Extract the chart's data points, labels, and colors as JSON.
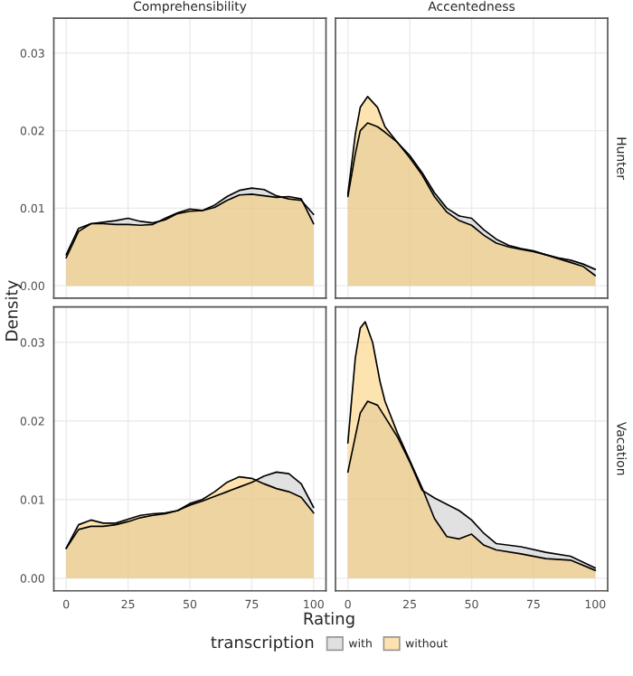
{
  "chart_data": [
    {
      "type": "area",
      "title": "Comprehensibility",
      "ylabel": "Density",
      "legend": "bottom",
      "legend_title": "transcription",
      "xlim": [
        -5,
        105
      ],
      "ylim": [
        -0.0016,
        0.0345
      ],
      "xticks": [
        0,
        25,
        50,
        75,
        100
      ],
      "yticks": [
        {
          "value": 0,
          "label": "0.00"
        },
        {
          "value": 0.01,
          "label": "0.01"
        },
        {
          "value": 0.02,
          "label": "0.02"
        },
        {
          "value": 0.03,
          "label": "0.03"
        }
      ],
      "tick_labels": "y",
      "grid": true,
      "series": [
        {
          "name": "with",
          "color": "#c3c3c3",
          "x": [
            0,
            5,
            10,
            15,
            20,
            25,
            30,
            35,
            40,
            45,
            50,
            55,
            60,
            65,
            70,
            75,
            80,
            85,
            90,
            95,
            100
          ],
          "values": [
            0.0036,
            0.007,
            0.008,
            0.0082,
            0.0084,
            0.0087,
            0.0083,
            0.0081,
            0.0085,
            0.0093,
            0.0096,
            0.0097,
            0.0104,
            0.0115,
            0.0123,
            0.0126,
            0.0124,
            0.0116,
            0.0112,
            0.011,
            0.0092
          ]
        },
        {
          "name": "without",
          "color": "#fbc761",
          "x": [
            0,
            5,
            10,
            15,
            20,
            25,
            30,
            35,
            40,
            45,
            50,
            55,
            60,
            65,
            70,
            75,
            80,
            85,
            90,
            95,
            100
          ],
          "values": [
            0.004,
            0.0074,
            0.008,
            0.008,
            0.0079,
            0.0079,
            0.0078,
            0.0079,
            0.0087,
            0.0094,
            0.0099,
            0.0097,
            0.0101,
            0.011,
            0.0117,
            0.0118,
            0.0116,
            0.0114,
            0.0115,
            0.0112,
            0.008
          ]
        }
      ]
    },
    {
      "type": "area",
      "title": "Accentedness",
      "annotations": [
        "Hunter"
      ],
      "xlim": [
        -5,
        105
      ],
      "ylim": [
        -0.0016,
        0.0345
      ],
      "xticks": [
        0,
        25,
        50,
        75,
        100
      ],
      "yticks": [
        {
          "value": 0,
          "label": null
        },
        {
          "value": 0.01,
          "label": null
        },
        {
          "value": 0.02,
          "label": null
        },
        {
          "value": 0.03,
          "label": null
        }
      ],
      "tick_labels": false,
      "grid": true,
      "series": [
        {
          "color": "#c3c3c3",
          "x": [
            0,
            3,
            5,
            8,
            12,
            15,
            20,
            25,
            30,
            35,
            40,
            45,
            50,
            55,
            60,
            65,
            70,
            75,
            80,
            85,
            90,
            95,
            100
          ],
          "values": [
            0.0115,
            0.017,
            0.02,
            0.021,
            0.0205,
            0.0198,
            0.0185,
            0.0168,
            0.0146,
            0.012,
            0.01,
            0.009,
            0.0087,
            0.0072,
            0.006,
            0.0052,
            0.0048,
            0.0045,
            0.004,
            0.0036,
            0.0033,
            0.0028,
            0.0021
          ]
        },
        {
          "color": "#fbc761",
          "x": [
            0,
            3,
            5,
            8,
            12,
            15,
            20,
            25,
            30,
            35,
            40,
            45,
            50,
            55,
            60,
            65,
            70,
            75,
            80,
            85,
            90,
            95,
            100
          ],
          "values": [
            0.0118,
            0.0195,
            0.023,
            0.0244,
            0.023,
            0.0205,
            0.0185,
            0.0165,
            0.0143,
            0.0115,
            0.0095,
            0.0084,
            0.0078,
            0.0065,
            0.0055,
            0.005,
            0.0047,
            0.0044,
            0.004,
            0.0035,
            0.003,
            0.0025,
            0.0013
          ]
        }
      ]
    },
    {
      "type": "area",
      "xlabel": "Rating",
      "xlim": [
        -5,
        105
      ],
      "ylim": [
        -0.0016,
        0.0345
      ],
      "xticks": [
        0,
        25,
        50,
        75,
        100
      ],
      "yticks": [
        {
          "value": 0,
          "label": "0.00"
        },
        {
          "value": 0.01,
          "label": "0.01"
        },
        {
          "value": 0.02,
          "label": "0.02"
        },
        {
          "value": 0.03,
          "label": "0.03"
        }
      ],
      "grid": true,
      "series": [
        {
          "color": "#c3c3c3",
          "x": [
            0,
            5,
            10,
            15,
            20,
            25,
            30,
            35,
            40,
            45,
            50,
            55,
            60,
            65,
            70,
            75,
            80,
            85,
            90,
            95,
            100
          ],
          "values": [
            0.0038,
            0.0062,
            0.0066,
            0.0066,
            0.0068,
            0.0072,
            0.0077,
            0.008,
            0.0082,
            0.0086,
            0.0093,
            0.0098,
            0.0104,
            0.011,
            0.0116,
            0.0122,
            0.013,
            0.0135,
            0.0133,
            0.012,
            0.009
          ]
        },
        {
          "color": "#fbc761",
          "x": [
            0,
            5,
            10,
            15,
            20,
            25,
            30,
            35,
            40,
            45,
            50,
            55,
            60,
            65,
            70,
            75,
            80,
            85,
            90,
            95,
            100
          ],
          "values": [
            0.0038,
            0.0068,
            0.0074,
            0.007,
            0.007,
            0.0075,
            0.008,
            0.0082,
            0.0083,
            0.0086,
            0.0095,
            0.01,
            0.011,
            0.0122,
            0.0129,
            0.0127,
            0.012,
            0.0114,
            0.011,
            0.0103,
            0.0083
          ]
        }
      ]
    },
    {
      "type": "area",
      "annotations": [
        "Vacation"
      ],
      "xlim": [
        -5,
        105
      ],
      "ylim": [
        -0.0016,
        0.0345
      ],
      "xticks": [
        0,
        25,
        50,
        75,
        100
      ],
      "yticks": [
        {
          "value": 0,
          "label": null
        },
        {
          "value": 0.01,
          "label": null
        },
        {
          "value": 0.02,
          "label": null
        },
        {
          "value": 0.03,
          "label": null
        }
      ],
      "tick_labels": "x",
      "grid": true,
      "series": [
        {
          "color": "#c3c3c3",
          "x": [
            0,
            3,
            5,
            8,
            12,
            15,
            20,
            25,
            30,
            35,
            40,
            45,
            50,
            55,
            60,
            70,
            80,
            90,
            100
          ],
          "values": [
            0.0135,
            0.018,
            0.021,
            0.0225,
            0.022,
            0.0205,
            0.018,
            0.0148,
            0.0112,
            0.0102,
            0.0094,
            0.0086,
            0.0074,
            0.0057,
            0.0044,
            0.004,
            0.0033,
            0.0028,
            0.0013
          ]
        },
        {
          "color": "#fbc761",
          "x": [
            0,
            3,
            5,
            7,
            10,
            13,
            15,
            20,
            25,
            30,
            35,
            40,
            45,
            50,
            55,
            60,
            70,
            80,
            90,
            100
          ],
          "values": [
            0.0172,
            0.028,
            0.0318,
            0.0326,
            0.03,
            0.025,
            0.0225,
            0.0185,
            0.015,
            0.0115,
            0.0076,
            0.0053,
            0.005,
            0.0056,
            0.0042,
            0.0036,
            0.0031,
            0.0025,
            0.0023,
            0.001
          ]
        }
      ]
    }
  ]
}
